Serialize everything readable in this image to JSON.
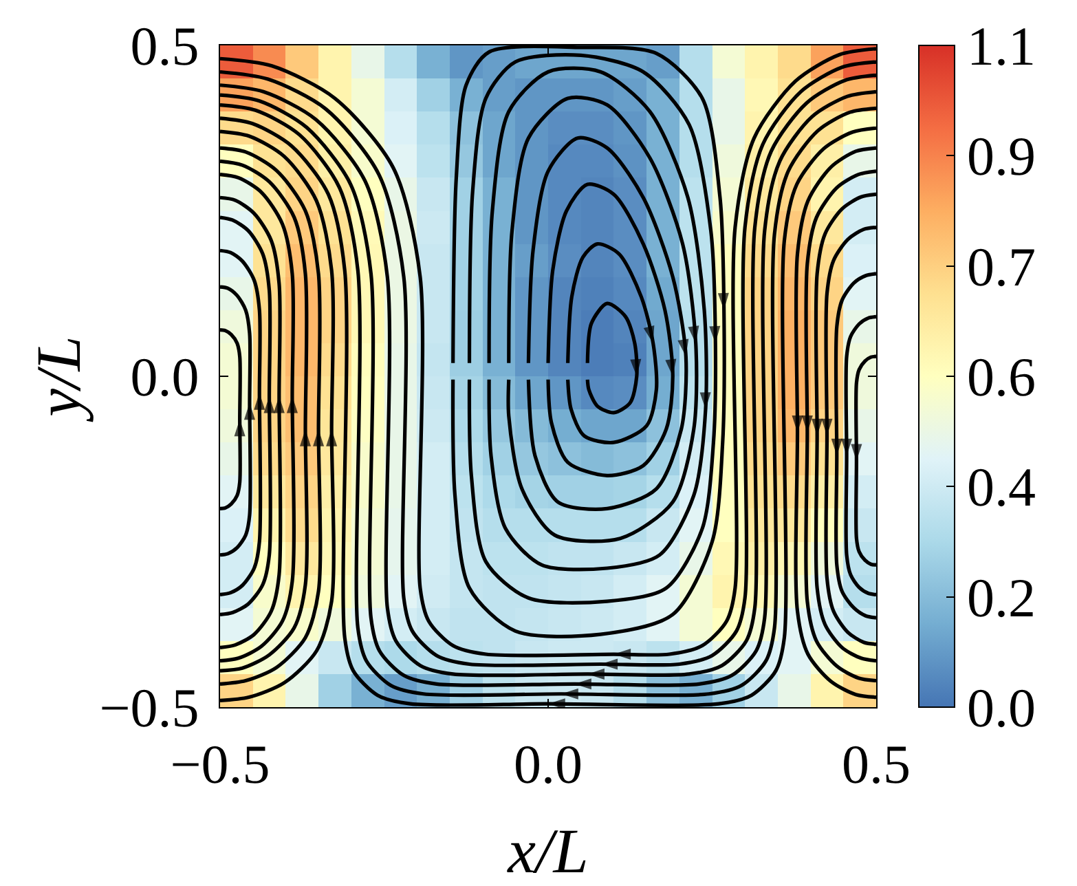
{
  "chart_data": {
    "type": "heatmap",
    "xlabel": "x/L",
    "ylabel": "y/L",
    "x": [
      -0.475,
      -0.425,
      -0.375,
      -0.325,
      -0.275,
      -0.225,
      -0.175,
      -0.125,
      -0.075,
      -0.025,
      0.025,
      0.075,
      0.125,
      0.175,
      0.225,
      0.275,
      0.325,
      0.375,
      0.425,
      0.475
    ],
    "y": [
      0.475,
      0.425,
      0.375,
      0.325,
      0.275,
      0.225,
      0.175,
      0.125,
      0.075,
      0.025,
      -0.025,
      -0.075,
      -0.125,
      -0.175,
      -0.225,
      -0.275,
      -0.325,
      -0.375,
      -0.425,
      -0.475
    ],
    "cells": [
      [
        1.0,
        0.9,
        0.75,
        0.6,
        0.45,
        0.3,
        0.15,
        0.08,
        0.1,
        0.12,
        0.12,
        0.12,
        0.12,
        0.1,
        0.3,
        0.5,
        0.6,
        0.7,
        0.85,
        1.0
      ],
      [
        0.85,
        0.8,
        0.7,
        0.6,
        0.5,
        0.38,
        0.25,
        0.15,
        0.1,
        0.08,
        0.08,
        0.08,
        0.1,
        0.15,
        0.3,
        0.45,
        0.58,
        0.68,
        0.75,
        0.8
      ],
      [
        0.7,
        0.72,
        0.68,
        0.6,
        0.5,
        0.4,
        0.3,
        0.2,
        0.12,
        0.08,
        0.06,
        0.06,
        0.08,
        0.15,
        0.3,
        0.45,
        0.6,
        0.68,
        0.68,
        0.55
      ],
      [
        0.55,
        0.68,
        0.7,
        0.62,
        0.52,
        0.42,
        0.32,
        0.22,
        0.12,
        0.08,
        0.05,
        0.05,
        0.07,
        0.15,
        0.3,
        0.48,
        0.62,
        0.7,
        0.62,
        0.45
      ],
      [
        0.45,
        0.65,
        0.72,
        0.65,
        0.55,
        0.45,
        0.35,
        0.25,
        0.15,
        0.08,
        0.05,
        0.04,
        0.06,
        0.15,
        0.32,
        0.5,
        0.65,
        0.72,
        0.6,
        0.38
      ],
      [
        0.42,
        0.65,
        0.75,
        0.68,
        0.57,
        0.46,
        0.36,
        0.25,
        0.15,
        0.08,
        0.05,
        0.04,
        0.06,
        0.15,
        0.32,
        0.52,
        0.68,
        0.75,
        0.65,
        0.38
      ],
      [
        0.42,
        0.68,
        0.78,
        0.7,
        0.58,
        0.46,
        0.35,
        0.25,
        0.15,
        0.1,
        0.06,
        0.04,
        0.06,
        0.15,
        0.32,
        0.55,
        0.7,
        0.78,
        0.7,
        0.4
      ],
      [
        0.45,
        0.7,
        0.8,
        0.72,
        0.58,
        0.46,
        0.35,
        0.25,
        0.15,
        0.08,
        0.04,
        0.03,
        0.05,
        0.13,
        0.32,
        0.55,
        0.72,
        0.8,
        0.72,
        0.42
      ],
      [
        0.48,
        0.72,
        0.8,
        0.72,
        0.58,
        0.46,
        0.35,
        0.24,
        0.15,
        0.08,
        0.04,
        0.02,
        0.04,
        0.12,
        0.3,
        0.55,
        0.72,
        0.82,
        0.75,
        0.45
      ],
      [
        0.5,
        0.72,
        0.8,
        0.7,
        0.56,
        0.45,
        0.34,
        0.24,
        0.15,
        0.08,
        0.04,
        0.02,
        0.03,
        0.12,
        0.3,
        0.55,
        0.72,
        0.82,
        0.75,
        0.48
      ],
      [
        0.5,
        0.72,
        0.78,
        0.68,
        0.55,
        0.45,
        0.35,
        0.26,
        0.18,
        0.12,
        0.08,
        0.05,
        0.06,
        0.14,
        0.32,
        0.55,
        0.72,
        0.82,
        0.75,
        0.48
      ],
      [
        0.48,
        0.72,
        0.78,
        0.66,
        0.54,
        0.45,
        0.36,
        0.28,
        0.22,
        0.18,
        0.14,
        0.12,
        0.12,
        0.2,
        0.35,
        0.55,
        0.72,
        0.8,
        0.72,
        0.45
      ],
      [
        0.45,
        0.7,
        0.75,
        0.65,
        0.52,
        0.45,
        0.38,
        0.3,
        0.25,
        0.22,
        0.2,
        0.18,
        0.2,
        0.25,
        0.38,
        0.55,
        0.7,
        0.75,
        0.68,
        0.42
      ],
      [
        0.42,
        0.65,
        0.72,
        0.62,
        0.52,
        0.45,
        0.38,
        0.32,
        0.28,
        0.26,
        0.25,
        0.25,
        0.26,
        0.3,
        0.4,
        0.55,
        0.68,
        0.7,
        0.62,
        0.38
      ],
      [
        0.4,
        0.6,
        0.7,
        0.6,
        0.5,
        0.44,
        0.38,
        0.33,
        0.3,
        0.3,
        0.3,
        0.3,
        0.3,
        0.35,
        0.42,
        0.55,
        0.65,
        0.65,
        0.55,
        0.35
      ],
      [
        0.38,
        0.55,
        0.65,
        0.58,
        0.5,
        0.44,
        0.38,
        0.34,
        0.32,
        0.32,
        0.33,
        0.33,
        0.35,
        0.38,
        0.45,
        0.58,
        0.62,
        0.58,
        0.48,
        0.32
      ],
      [
        0.38,
        0.52,
        0.6,
        0.55,
        0.48,
        0.42,
        0.37,
        0.34,
        0.33,
        0.33,
        0.34,
        0.35,
        0.38,
        0.42,
        0.5,
        0.6,
        0.58,
        0.5,
        0.42,
        0.3
      ],
      [
        0.42,
        0.5,
        0.52,
        0.48,
        0.42,
        0.38,
        0.35,
        0.33,
        0.33,
        0.34,
        0.35,
        0.36,
        0.38,
        0.42,
        0.5,
        0.55,
        0.5,
        0.42,
        0.38,
        0.35
      ],
      [
        0.55,
        0.5,
        0.42,
        0.35,
        0.3,
        0.28,
        0.3,
        0.32,
        0.33,
        0.35,
        0.36,
        0.36,
        0.35,
        0.32,
        0.38,
        0.45,
        0.4,
        0.42,
        0.5,
        0.55
      ],
      [
        0.72,
        0.6,
        0.45,
        0.25,
        0.15,
        0.1,
        0.15,
        0.25,
        0.32,
        0.35,
        0.36,
        0.35,
        0.3,
        0.2,
        0.15,
        0.25,
        0.35,
        0.45,
        0.6,
        0.72
      ]
    ],
    "clim": [
      0,
      1.1
    ],
    "cticks": [
      {
        "value": 0,
        "label": "0.0"
      },
      {
        "value": 0.183,
        "label": "0.2"
      },
      {
        "value": 0.367,
        "label": "0.4"
      },
      {
        "value": 0.55,
        "label": "0.6"
      },
      {
        "value": 0.733,
        "label": "0.7"
      },
      {
        "value": 0.917,
        "label": "0.9"
      },
      {
        "value": 1.1,
        "label": "1.1"
      }
    ],
    "xlim": [
      -0.5,
      0.5
    ],
    "ylim": [
      -0.5,
      0.5
    ],
    "xticks": [
      {
        "value": -0.5,
        "label": "−0.5"
      },
      {
        "value": 0,
        "label": "0.0"
      },
      {
        "value": 0.5,
        "label": "0.5"
      }
    ],
    "yticks": [
      {
        "value": -0.5,
        "label": "−0.5"
      },
      {
        "value": 0,
        "label": "0.0"
      },
      {
        "value": 0.5,
        "label": "0.5"
      }
    ],
    "series": [
      {
        "type": "line",
        "color": "#000000",
        "x": [
          -0.5,
          -0.492,
          -0.483,
          -0.474,
          -0.47,
          -0.47,
          -0.47,
          -0.474,
          -0.483,
          -0.492,
          -0.5
        ],
        "values": [
          -0.2,
          -0.199,
          -0.193,
          -0.18,
          -0.16,
          -0.065,
          0.03,
          0.05,
          0.063,
          0.069,
          0.07
        ]
      },
      {
        "type": "line",
        "color": "#000000",
        "x": [
          -0.5,
          -0.488,
          -0.474,
          -0.461,
          -0.455,
          -0.455,
          -0.455,
          -0.461,
          -0.474,
          -0.488,
          -0.5
        ],
        "values": [
          -0.27,
          -0.268,
          -0.259,
          -0.24,
          -0.21,
          -0.04,
          0.065,
          0.1,
          0.122,
          0.133,
          0.135
        ]
      },
      {
        "type": "line",
        "color": "#000000",
        "x": [
          -0.5,
          -0.484,
          -0.466,
          -0.448,
          -0.44,
          -0.44,
          -0.44,
          -0.448,
          -0.466,
          -0.484,
          -0.5
        ],
        "values": [
          -0.33,
          -0.327,
          -0.316,
          -0.29,
          -0.25,
          -0.025,
          0.1,
          0.145,
          0.174,
          0.187,
          0.19
        ]
      },
      {
        "type": "line",
        "color": "#000000",
        "x": [
          -0.5,
          -0.481,
          -0.457,
          -0.435,
          -0.425,
          -0.425,
          -0.425,
          -0.435,
          -0.457,
          -0.481,
          -0.5
        ],
        "values": [
          -0.36,
          -0.357,
          -0.344,
          -0.315,
          -0.27,
          -0.03,
          0.13,
          0.185,
          0.22,
          0.236,
          0.24
        ]
      },
      {
        "type": "line",
        "color": "#000000",
        "x": [
          -0.5,
          -0.477,
          -0.448,
          -0.422,
          -0.41,
          -0.41,
          -0.41,
          -0.422,
          -0.448,
          -0.477,
          -0.5
        ],
        "values": [
          -0.41,
          -0.406,
          -0.39,
          -0.355,
          -0.3,
          -0.03,
          0.14,
          0.205,
          0.246,
          0.266,
          0.27
        ]
      },
      {
        "type": "line",
        "color": "#000000",
        "x": [
          -0.5,
          -0.472,
          -0.437,
          -0.405,
          -0.39,
          -0.39,
          -0.39,
          -0.405,
          -0.437,
          -0.472,
          -0.5
        ],
        "values": [
          -0.43,
          -0.426,
          -0.408,
          -0.37,
          -0.31,
          -0.03,
          0.155,
          0.23,
          0.278,
          0.3,
          0.305
        ]
      },
      {
        "type": "line",
        "color": "#000000",
        "x": [
          -0.5,
          -0.466,
          -0.425,
          -0.387,
          -0.37,
          -0.37,
          -0.37,
          -0.387,
          -0.425,
          -0.466,
          -0.5
        ],
        "values": [
          -0.445,
          -0.441,
          -0.421,
          -0.38,
          -0.315,
          -0.08,
          0.155,
          0.24,
          0.294,
          0.319,
          0.325
        ]
      },
      {
        "type": "line",
        "color": "#000000",
        "x": [
          -0.5,
          -0.461,
          -0.414,
          -0.37,
          -0.35,
          -0.35,
          -0.35,
          -0.37,
          -0.414,
          -0.461,
          -0.5
        ],
        "values": [
          -0.465,
          -0.46,
          -0.44,
          -0.395,
          -0.325,
          -0.08,
          0.155,
          0.25,
          0.311,
          0.339,
          0.345
        ]
      },
      {
        "type": "line",
        "color": "#000000",
        "x": [
          -0.5,
          -0.456,
          -0.402,
          -0.353,
          -0.33,
          -0.33,
          -0.33,
          -0.353,
          -0.402,
          -0.456,
          -0.5
        ],
        "values": [
          -0.49,
          -0.485,
          -0.463,
          -0.415,
          -0.34,
          -0.08,
          0.16,
          0.265,
          0.332,
          0.363,
          0.37
        ]
      },
      {
        "type": "line",
        "color": "#000000",
        "x": [
          0.5,
          0.464,
          0.42,
          0.379,
          0.36,
          0.36,
          0.347,
          0.31,
          0.26,
          0.0,
          -0.21,
          -0.26,
          -0.297,
          -0.31,
          -0.31,
          -0.335,
          -0.391,
          -0.451,
          -0.5
        ],
        "values": [
          0.375,
          0.369,
          0.344,
          0.29,
          0.205,
          -0.395,
          -0.445,
          -0.482,
          -0.495,
          -0.495,
          -0.495,
          -0.482,
          -0.445,
          -0.395,
          0.16,
          0.275,
          0.348,
          0.382,
          0.39
        ]
      },
      {
        "type": "line",
        "color": "#000000",
        "x": [
          0.5,
          0.46,
          0.411,
          0.366,
          0.345,
          0.345,
          0.332,
          0.295,
          0.245,
          0.02,
          -0.19,
          -0.24,
          -0.277,
          -0.29,
          -0.29,
          -0.318,
          -0.379,
          -0.446,
          -0.5
        ],
        "values": [
          0.405,
          0.399,
          0.371,
          0.31,
          0.215,
          -0.38,
          -0.43,
          -0.467,
          -0.48,
          -0.48,
          -0.48,
          -0.467,
          -0.43,
          -0.38,
          0.16,
          0.285,
          0.365,
          0.402,
          0.41
        ]
      },
      {
        "type": "line",
        "color": "#000000",
        "x": [
          0.5,
          0.456,
          0.402,
          0.353,
          0.33,
          0.33,
          0.317,
          0.28,
          0.23,
          0.04,
          -0.17,
          -0.22,
          -0.257,
          -0.27,
          -0.27,
          -0.301,
          -0.368,
          -0.44,
          -0.5
        ],
        "values": [
          0.43,
          0.423,
          0.392,
          0.325,
          0.22,
          -0.365,
          -0.415,
          -0.452,
          -0.465,
          -0.465,
          -0.465,
          -0.452,
          -0.415,
          -0.365,
          0.155,
          0.29,
          0.376,
          0.416,
          0.425
        ]
      },
      {
        "type": "line",
        "color": "#000000",
        "x": [
          0.5,
          0.452,
          0.394,
          0.34,
          0.315,
          0.315,
          0.302,
          0.265,
          0.215,
          0.06,
          -0.145,
          -0.195,
          -0.232,
          -0.245,
          -0.245,
          -0.279,
          -0.354,
          -0.434,
          -0.5
        ],
        "values": [
          0.455,
          0.447,
          0.413,
          0.34,
          0.225,
          -0.35,
          -0.4,
          -0.437,
          -0.45,
          -0.45,
          -0.45,
          -0.437,
          -0.4,
          -0.35,
          0.15,
          0.295,
          0.388,
          0.43,
          0.44
        ]
      },
      {
        "type": "line",
        "color": "#000000",
        "x": [
          0.5,
          0.448,
          0.385,
          0.327,
          0.3,
          0.3,
          0.287,
          0.25,
          0.2,
          0.08,
          -0.12,
          -0.17,
          -0.207,
          -0.22,
          -0.22,
          -0.258,
          -0.339,
          -0.427,
          -0.5
        ],
        "values": [
          0.475,
          0.467,
          0.43,
          0.35,
          0.225,
          -0.335,
          -0.385,
          -0.422,
          -0.435,
          -0.435,
          -0.435,
          -0.422,
          -0.385,
          -0.335,
          0.15,
          0.305,
          0.404,
          0.449,
          0.46
        ]
      },
      {
        "type": "line",
        "color": "#000000",
        "x": [
          0.5,
          0.444,
          0.377,
          0.314,
          0.285,
          0.285,
          0.272,
          0.235,
          0.185,
          0.1,
          -0.095,
          -0.145,
          -0.182,
          -0.195,
          -0.195,
          -0.236,
          -0.325,
          -0.421,
          -0.5
        ],
        "values": [
          0.495,
          0.486,
          0.446,
          0.36,
          0.225,
          -0.32,
          -0.37,
          -0.407,
          -0.42,
          -0.42,
          -0.42,
          -0.407,
          -0.37,
          -0.32,
          0.15,
          0.315,
          0.42,
          0.469,
          0.48
        ]
      },
      {
        "type": "line",
        "color": "#000000",
        "x": [
          0.06,
          0.066,
          0.09,
          0.118,
          0.132,
          0.135,
          0.125,
          0.1,
          0.075,
          0.062,
          0.06
        ],
        "values": [
          0.02,
          0.08,
          0.11,
          0.09,
          0.05,
          0.0,
          -0.04,
          -0.055,
          -0.045,
          -0.02,
          -0.005
        ]
      },
      {
        "type": "line",
        "color": "#000000",
        "x": [
          0.03,
          0.036,
          0.053,
          0.075,
          0.108,
          0.142,
          0.16,
          0.165,
          0.15,
          0.1,
          0.055,
          0.035,
          0.03
        ],
        "values": [
          0.02,
          0.12,
          0.18,
          0.2,
          0.185,
          0.12,
          0.05,
          -0.02,
          -0.075,
          -0.1,
          -0.09,
          -0.05,
          -0.005
        ]
      },
      {
        "type": "line",
        "color": "#000000",
        "x": [
          0.0,
          0.007,
          0.028,
          0.06,
          0.1,
          0.145,
          0.178,
          0.19,
          0.18,
          0.145,
          0.09,
          0.03,
          0.005,
          0.0
        ],
        "values": [
          0.02,
          0.16,
          0.25,
          0.29,
          0.275,
          0.2,
          0.1,
          0.0,
          -0.08,
          -0.135,
          -0.15,
          -0.13,
          -0.07,
          -0.005
        ]
      },
      {
        "type": "line",
        "color": "#000000",
        "x": [
          -0.03,
          -0.023,
          0.0,
          0.045,
          0.09,
          0.145,
          0.19,
          0.21,
          0.203,
          0.165,
          0.09,
          0.015,
          -0.02,
          -0.03
        ],
        "values": [
          0.02,
          0.19,
          0.31,
          0.36,
          0.345,
          0.27,
          0.15,
          0.03,
          -0.08,
          -0.17,
          -0.2,
          -0.19,
          -0.12,
          -0.005
        ]
      },
      {
        "type": "line",
        "color": "#000000",
        "x": [
          -0.06,
          -0.055,
          -0.03,
          0.03,
          0.09,
          0.155,
          0.205,
          0.225,
          0.222,
          0.19,
          0.11,
          0.01,
          -0.04,
          -0.06,
          -0.06
        ],
        "values": [
          0.02,
          0.22,
          0.36,
          0.42,
          0.41,
          0.33,
          0.2,
          0.05,
          -0.08,
          -0.19,
          -0.245,
          -0.24,
          -0.17,
          -0.06,
          -0.005
        ]
      },
      {
        "type": "line",
        "color": "#000000",
        "x": [
          -0.09,
          -0.085,
          -0.06,
          0.0,
          0.08,
          0.155,
          0.213,
          0.238,
          0.24,
          0.222,
          0.17,
          0.09,
          -0.01,
          -0.065,
          -0.087,
          -0.09
        ],
        "values": [
          0.02,
          0.25,
          0.4,
          0.46,
          0.46,
          0.4,
          0.27,
          0.1,
          -0.05,
          -0.18,
          -0.27,
          -0.29,
          -0.285,
          -0.23,
          -0.12,
          -0.005
        ]
      },
      {
        "type": "line",
        "color": "#000000",
        "x": [
          -0.12,
          -0.115,
          -0.095,
          -0.05,
          0.05,
          0.145,
          0.215,
          0.248,
          0.255,
          0.252,
          0.235,
          0.18,
          0.09,
          -0.03,
          -0.095,
          -0.117,
          -0.12
        ],
        "values": [
          0.02,
          0.28,
          0.42,
          0.475,
          0.485,
          0.46,
          0.38,
          0.22,
          0.05,
          -0.1,
          -0.23,
          -0.32,
          -0.34,
          -0.335,
          -0.28,
          -0.15,
          -0.005
        ]
      },
      {
        "type": "line",
        "color": "#000000",
        "x": [
          -0.145,
          -0.14,
          -0.125,
          -0.09,
          0.05,
          0.165,
          0.235,
          0.262,
          0.268,
          0.266,
          0.25,
          0.19,
          0.08,
          -0.05,
          -0.12,
          -0.142,
          -0.145
        ],
        "values": [
          0.02,
          0.3,
          0.44,
          0.49,
          0.497,
          0.488,
          0.42,
          0.27,
          0.1,
          -0.1,
          -0.25,
          -0.36,
          -0.39,
          -0.385,
          -0.32,
          -0.18,
          -0.005
        ]
      },
      {
        "type": "line",
        "color": "#000000",
        "x": [
          0.5,
          0.492,
          0.483,
          0.474,
          0.47,
          0.47,
          0.47,
          0.474,
          0.483,
          0.492,
          0.5
        ],
        "values": [
          0.03,
          0.029,
          0.023,
          0.01,
          -0.01,
          -0.128,
          -0.245,
          -0.265,
          -0.278,
          -0.284,
          -0.285
        ]
      },
      {
        "type": "line",
        "color": "#000000",
        "x": [
          0.5,
          0.488,
          0.474,
          0.461,
          0.455,
          0.455,
          0.455,
          0.461,
          0.474,
          0.488,
          0.5
        ],
        "values": [
          0.09,
          0.088,
          0.079,
          0.06,
          0.03,
          -0.12,
          -0.27,
          -0.3,
          -0.319,
          -0.328,
          -0.33
        ]
      },
      {
        "type": "line",
        "color": "#000000",
        "x": [
          0.5,
          0.484,
          0.466,
          0.448,
          0.44,
          0.44,
          0.44,
          0.448,
          0.466,
          0.484,
          0.5
        ],
        "values": [
          0.155,
          0.152,
          0.141,
          0.115,
          0.075,
          -0.12,
          -0.285,
          -0.325,
          -0.35,
          -0.362,
          -0.365
        ]
      },
      {
        "type": "line",
        "color": "#000000",
        "x": [
          0.5,
          0.481,
          0.457,
          0.435,
          0.425,
          0.425,
          0.425,
          0.435,
          0.457,
          0.481,
          0.5
        ],
        "values": [
          0.225,
          0.222,
          0.207,
          0.175,
          0.125,
          -0.09,
          -0.305,
          -0.355,
          -0.387,
          -0.402,
          -0.405
        ]
      },
      {
        "type": "line",
        "color": "#000000",
        "x": [
          0.5,
          0.477,
          0.448,
          0.422,
          0.41,
          0.41,
          0.41,
          0.422,
          0.448,
          0.477,
          0.5
        ],
        "values": [
          0.275,
          0.271,
          0.253,
          0.215,
          0.155,
          -0.09,
          -0.32,
          -0.375,
          -0.41,
          -0.426,
          -0.43
        ]
      },
      {
        "type": "line",
        "color": "#000000",
        "x": [
          0.5,
          0.473,
          0.44,
          0.409,
          0.395,
          0.395,
          0.395,
          0.409,
          0.44,
          0.473,
          0.5
        ],
        "values": [
          0.31,
          0.305,
          0.285,
          0.24,
          0.17,
          -0.085,
          -0.34,
          -0.4,
          -0.438,
          -0.456,
          -0.46
        ]
      },
      {
        "type": "line",
        "color": "#000000",
        "x": [
          0.5,
          0.469,
          0.431,
          0.396,
          0.38,
          0.38,
          0.38,
          0.396,
          0.431,
          0.469,
          0.5
        ],
        "values": [
          0.345,
          0.34,
          0.316,
          0.265,
          0.185,
          -0.085,
          -0.355,
          -0.42,
          -0.461,
          -0.481,
          -0.485
        ]
      }
    ]
  }
}
